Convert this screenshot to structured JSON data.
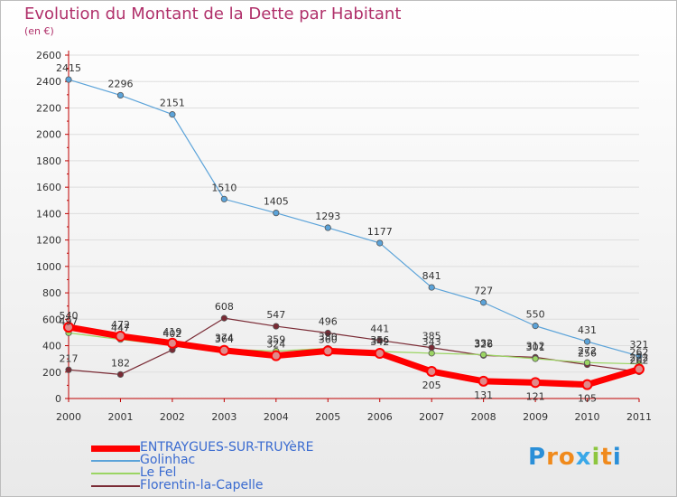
{
  "header": {
    "title": "Evolution du Montant de la Dette par Habitant",
    "unit": "(en €)"
  },
  "logo": {
    "text": "Proxiti",
    "letters": [
      "P",
      "r",
      "o",
      "x",
      "i",
      "t",
      "i"
    ],
    "colors": [
      "#2a8fd8",
      "#f08a1c",
      "#f08a1c",
      "#3aa8e8",
      "#8dc63f",
      "#f08a1c",
      "#2a8fd8"
    ]
  },
  "colors": {
    "title": "#b0306a",
    "axis": "#c00000",
    "grid": "#dddddd",
    "legend_text": "#3a6bd0"
  },
  "chart_data": {
    "type": "line",
    "categories": [
      "2000",
      "2001",
      "2002",
      "2003",
      "2004",
      "2005",
      "2006",
      "2007",
      "2008",
      "2009",
      "2010",
      "2011"
    ],
    "ylim": [
      0,
      2600
    ],
    "yticks": [
      0,
      200,
      400,
      600,
      800,
      1000,
      1200,
      1400,
      1600,
      1800,
      2000,
      2200,
      2400,
      2600
    ],
    "grid": "horizontal",
    "legend_position": "bottom-left",
    "series": [
      {
        "name": "ENTRAYGUES-SUR-TRUYèRE",
        "color": "#ff0000",
        "values": [
          540,
          472,
          419,
          364,
          324,
          360,
          342,
          205,
          131,
          121,
          105,
          222
        ],
        "labels": [
          "540",
          "472",
          "419",
          "364",
          "324",
          "360",
          "342",
          "205",
          "131",
          "121",
          "105",
          "222"
        ]
      },
      {
        "name": "Golinhac",
        "color": "#5ba3d9",
        "values": [
          2415,
          2296,
          2151,
          1510,
          1405,
          1293,
          1177,
          841,
          727,
          550,
          431,
          321
        ],
        "labels": [
          "2415",
          "2296",
          "2151",
          "1510",
          "1405",
          "1293",
          "1177",
          "841",
          "727",
          "550",
          "431",
          "321"
        ]
      },
      {
        "name": "Le Fel",
        "color": "#9bd563",
        "values": [
          497,
          447,
          402,
          374,
          359,
          380,
          356,
          343,
          332,
          301,
          272,
          262
        ],
        "labels": [
          "497",
          "447",
          "402",
          "374",
          "359",
          "380",
          "356",
          "343",
          "332",
          "301",
          "272",
          "262"
        ]
      },
      {
        "name": "Florentin-la-Capelle",
        "color": "#7a2b35",
        "values": [
          217,
          182,
          368,
          608,
          547,
          496,
          441,
          385,
          326,
          312,
          256,
          202
        ],
        "labels": [
          "217",
          "182",
          "",
          "608",
          "547",
          "496",
          "441",
          "385",
          "326",
          "312",
          "256",
          "202"
        ]
      }
    ]
  }
}
